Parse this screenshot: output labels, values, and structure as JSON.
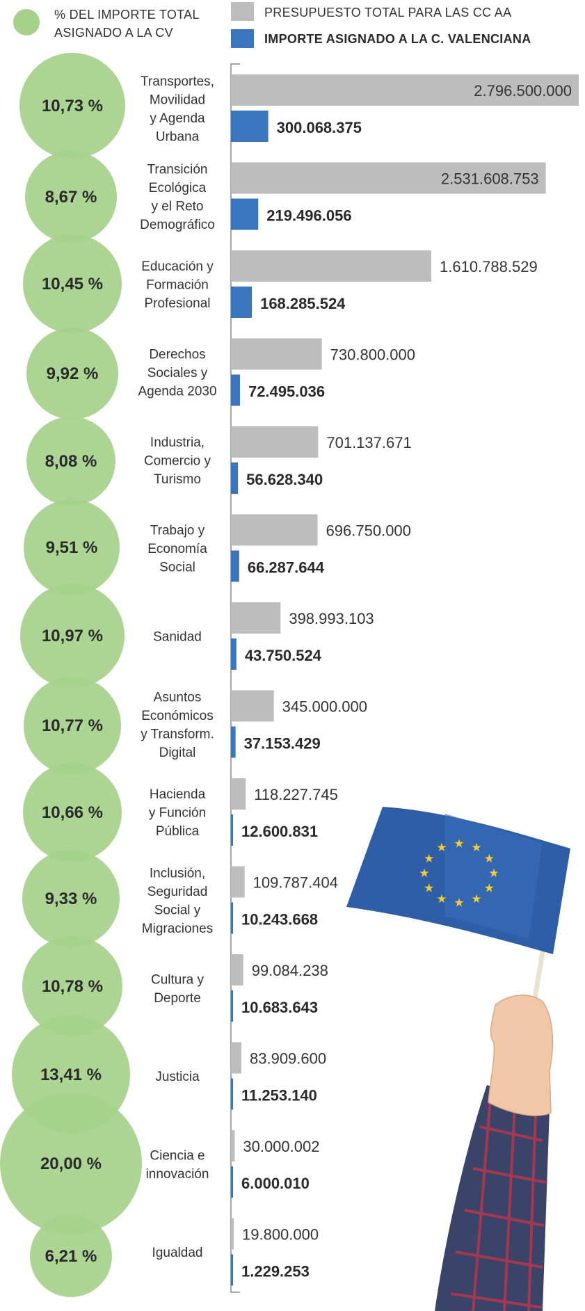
{
  "legend": {
    "pct_label_line1": "% DEL IMPORTE TOTAL",
    "pct_label_line2": "ASIGNADO A LA CV",
    "total_label": "PRESUPUESTO TOTAL PARA LAS CC AA",
    "cv_label": "IMPORTE ASIGNADO A LA C. VALENCIANA"
  },
  "colors": {
    "total_bar": "#bdbdbd",
    "cv_bar": "#3a75bd",
    "circle": "#a5d18b",
    "axis": "#888888",
    "flag": "#2f5ea8",
    "star": "#f2cd2b"
  },
  "chart_data": {
    "type": "bar",
    "orientation": "horizontal",
    "categories": [
      "Transportes, Movilidad y Agenda Urbana",
      "Transición Ecológica y el Reto Demográfico",
      "Educación y Formación Profesional",
      "Derechos Sociales y Agenda 2030",
      "Industria, Comercio y Turismo",
      "Trabajo y Economía Social",
      "Sanidad",
      "Asuntos Económicos y Transform. Digital",
      "Hacienda y Función Pública",
      "Inclusión, Seguridad Social y Migraciones",
      "Cultura y Deporte",
      "Justicia",
      "Ciencia e innovación",
      "Igualdad"
    ],
    "category_lines": [
      [
        "Transportes,",
        "Movilidad",
        "y Agenda",
        "Urbana"
      ],
      [
        "Transición",
        "Ecológica",
        "y el Reto",
        "Demográfico"
      ],
      [
        "Educación y",
        "Formación",
        "Profesional"
      ],
      [
        "Derechos",
        "Sociales y",
        "Agenda 2030"
      ],
      [
        "Industria,",
        "Comercio y",
        "Turismo"
      ],
      [
        "Trabajo y",
        "Economía",
        "Social"
      ],
      [
        "Sanidad"
      ],
      [
        "Asuntos",
        "Económicos",
        "y Transform.",
        "Digital"
      ],
      [
        "Hacienda",
        "y Función",
        "Pública"
      ],
      [
        "Inclusión,",
        "Seguridad",
        "Social y",
        "Migraciones"
      ],
      [
        "Cultura y",
        "Deporte"
      ],
      [
        "Justicia"
      ],
      [
        "Ciencia e",
        "innovación"
      ],
      [
        "Igualdad"
      ]
    ],
    "series": [
      {
        "name": "PRESUPUESTO TOTAL PARA LAS CC AA",
        "values": [
          2796500000,
          2531608753,
          1610788529,
          730800000,
          701137671,
          696750000,
          398993103,
          345000000,
          118227745,
          109787404,
          99084238,
          83909600,
          30000002,
          19800000
        ],
        "labels": [
          "2.796.500.000",
          "2.531.608.753",
          "1.610.788.529",
          "730.800.000",
          "701.137.671",
          "696.750.000",
          "398.993.103",
          "345.000.000",
          "118.227.745",
          "109.787.404",
          "99.084.238",
          "83.909.600",
          "30.000.002",
          "19.800.000"
        ]
      },
      {
        "name": "IMPORTE ASIGNADO A LA C. VALENCIANA",
        "values": [
          300068375,
          219496056,
          168285524,
          72495036,
          56628340,
          66287644,
          43750524,
          37153429,
          12600831,
          10243668,
          10683643,
          11253140,
          6000010,
          1229253
        ],
        "labels": [
          "300.068.375",
          "219.496.056",
          "168.285.524",
          "72.495.036",
          "56.628.340",
          "66.287.644",
          "43.750.524",
          "37.153.429",
          "12.600.831",
          "10.243.668",
          "10.683.643",
          "11.253.140",
          "6.000.010",
          "1.229.253"
        ]
      },
      {
        "name": "% DEL IMPORTE TOTAL ASIGNADO A LA CV",
        "values": [
          10.73,
          8.67,
          10.45,
          9.92,
          8.08,
          9.51,
          10.97,
          10.77,
          10.66,
          9.33,
          10.78,
          13.41,
          20.0,
          6.21
        ],
        "labels": [
          "10,73 %",
          "8,67 %",
          "10,45 %",
          "9,92 %",
          "8,08 %",
          "9,51 %",
          "10,97 %",
          "10,77 %",
          "10,66 %",
          "9,33 %",
          "10,78 %",
          "13,41 %",
          "20,00 %",
          "6,21 %"
        ]
      }
    ],
    "xlim": [
      0,
      2796500000
    ],
    "grid": false,
    "legend_position": "top"
  }
}
